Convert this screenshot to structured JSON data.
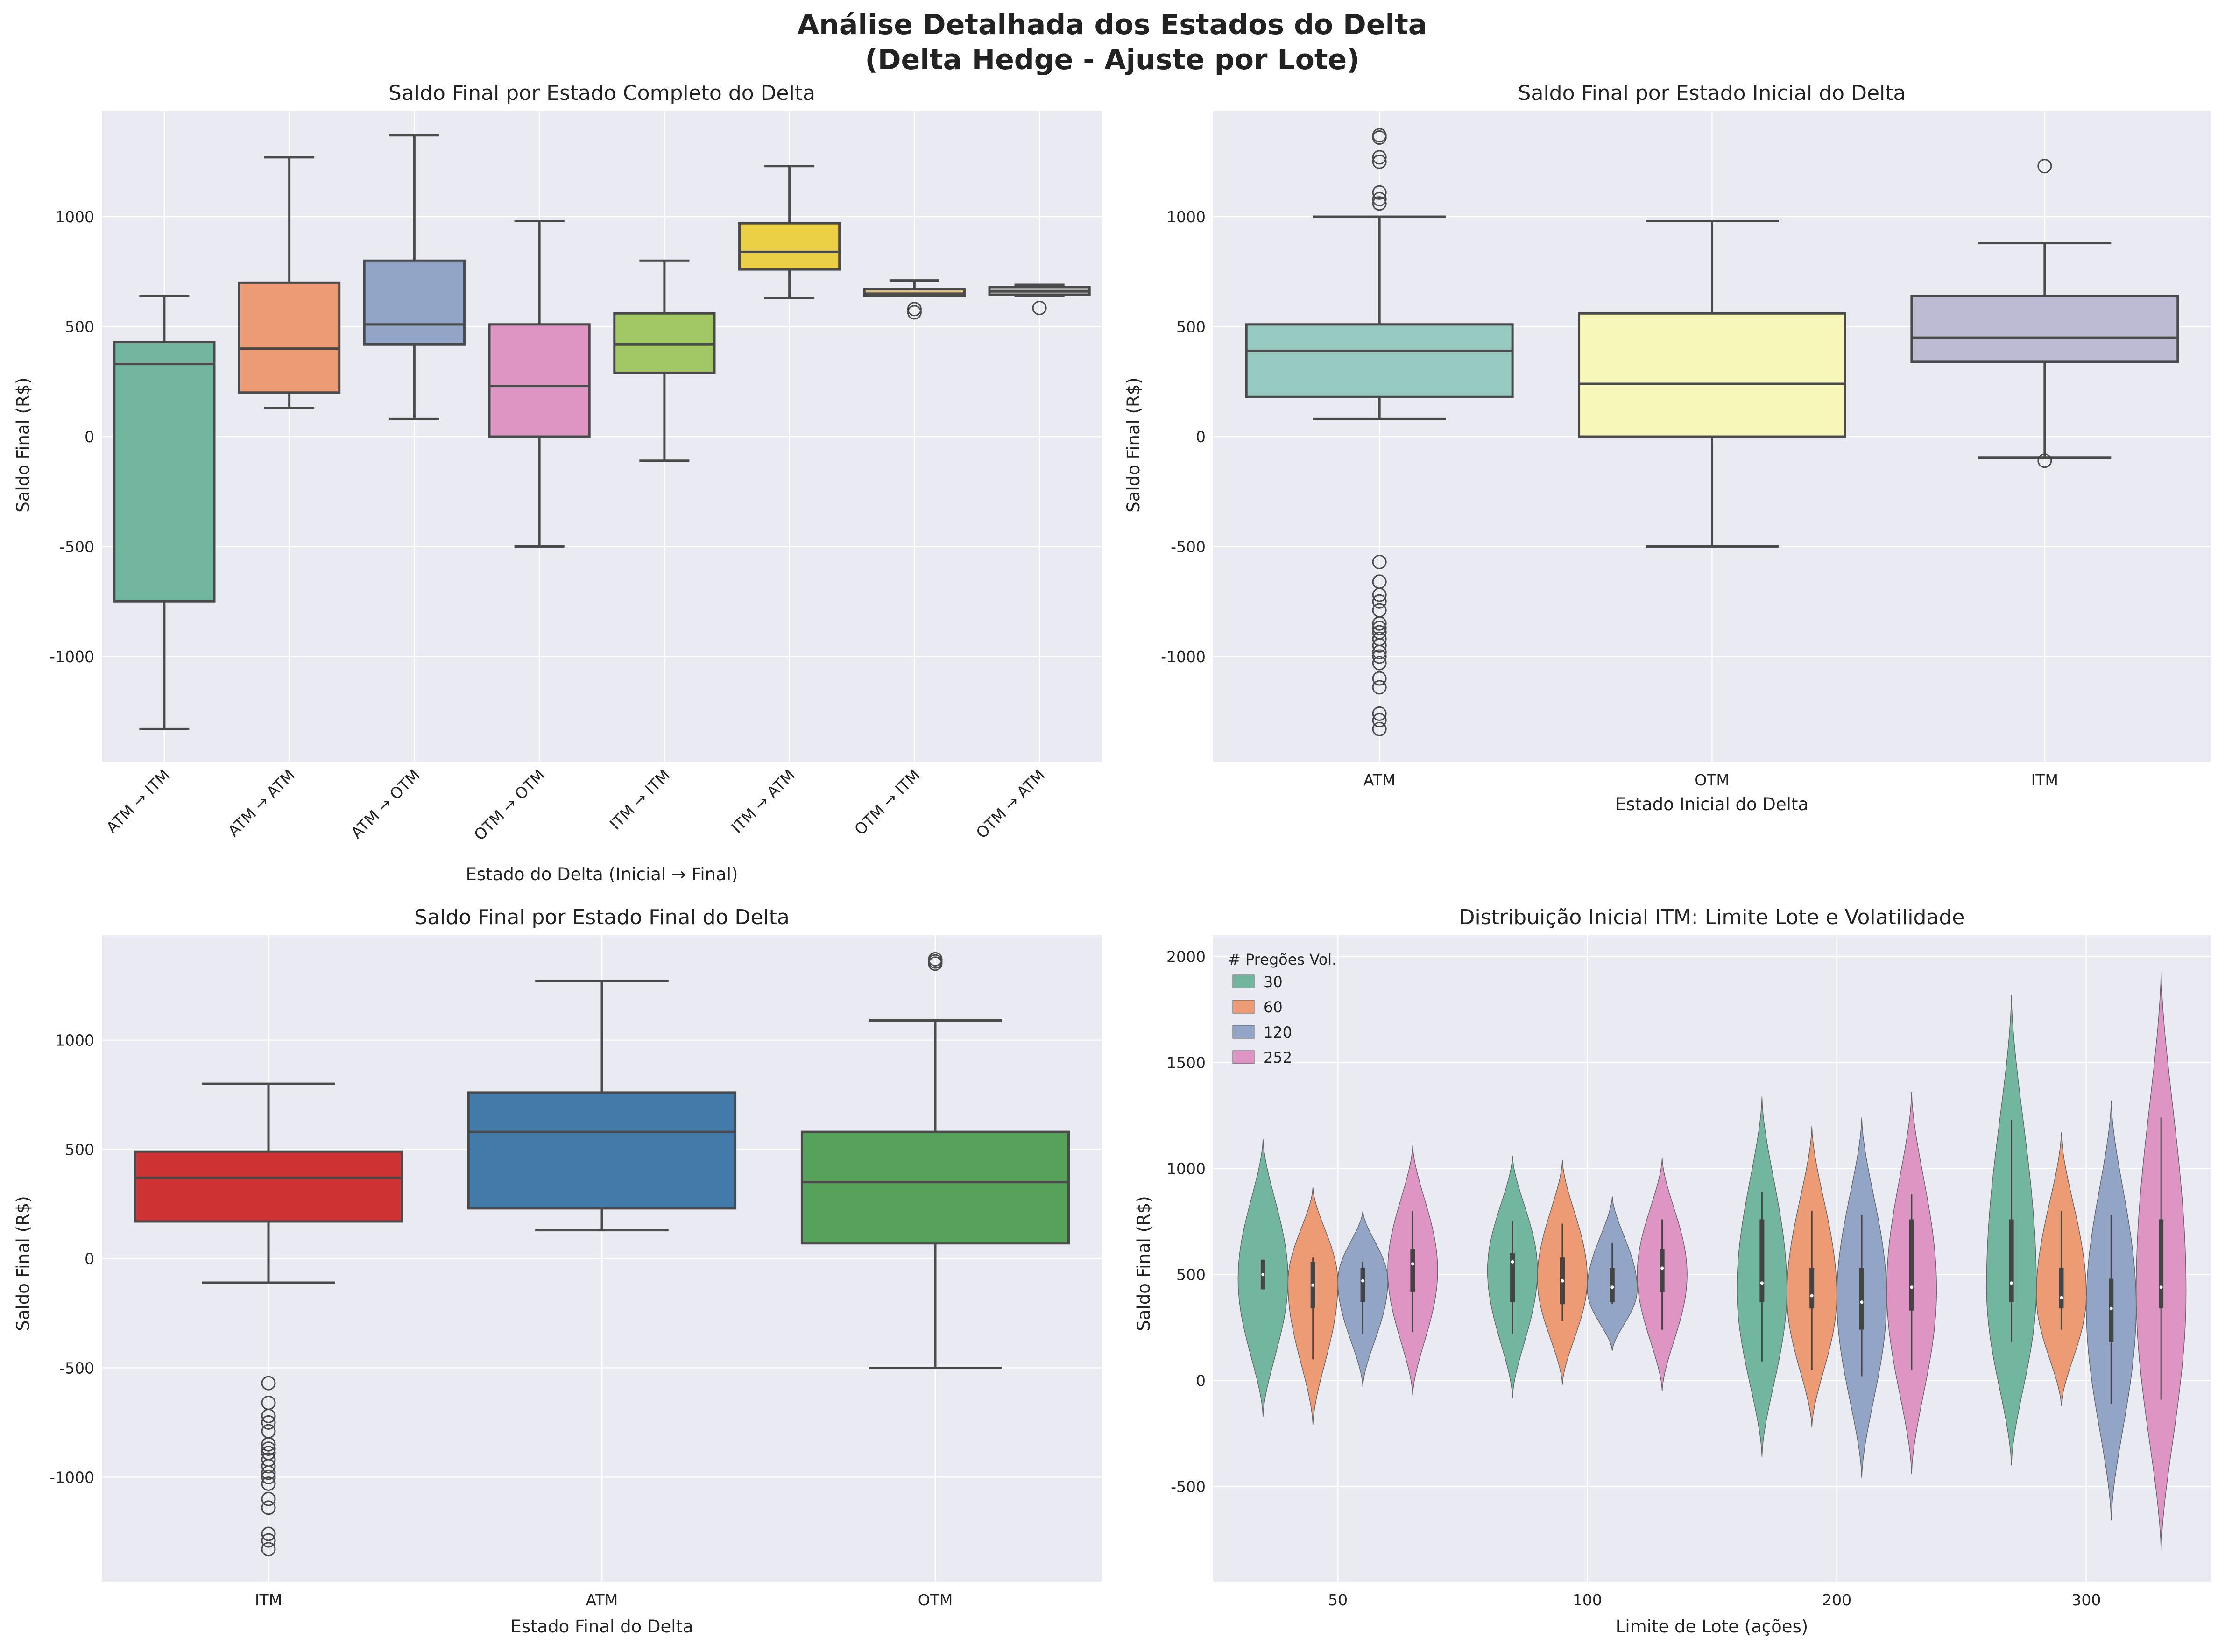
{
  "figure": {
    "title_line1": "Análise Detalhada dos Estados do Delta",
    "title_line2": "(Delta Hedge - Ajuste por Lote)"
  },
  "chart_data": [
    {
      "type": "box",
      "title": "Saldo Final por Estado Completo do Delta",
      "xlabel": "Estado do Delta (Inicial → Final)",
      "ylabel": "Saldo Final (R$)",
      "ylim": [
        -1480,
        1480
      ],
      "yticks": [
        -1000,
        -500,
        0,
        500,
        1000
      ],
      "categories": [
        "ATM → ITM",
        "ATM → ATM",
        "ATM → OTM",
        "OTM → OTM",
        "ITM → ITM",
        "ITM → ATM",
        "OTM → ITM",
        "OTM → ATM"
      ],
      "colors": [
        "#72b6a0",
        "#ed9b74",
        "#93a5c7",
        "#de95c4",
        "#a2c866",
        "#ebd046",
        "#e0c286",
        "#b3b3b3"
      ],
      "boxes": [
        {
          "whislo": -1330,
          "q1": -750,
          "med": 330,
          "q3": 430,
          "whishi": 640,
          "fliers": []
        },
        {
          "whislo": 130,
          "q1": 200,
          "med": 400,
          "q3": 700,
          "whishi": 1270,
          "fliers": []
        },
        {
          "whislo": 80,
          "q1": 420,
          "med": 510,
          "q3": 800,
          "whishi": 1370,
          "fliers": []
        },
        {
          "whislo": -500,
          "q1": 0,
          "med": 230,
          "q3": 510,
          "whishi": 980,
          "fliers": []
        },
        {
          "whislo": -110,
          "q1": 290,
          "med": 420,
          "q3": 560,
          "whishi": 800,
          "fliers": []
        },
        {
          "whislo": 630,
          "q1": 760,
          "med": 840,
          "q3": 970,
          "whishi": 1230,
          "fliers": []
        },
        {
          "whislo": 640,
          "q1": 640,
          "med": 650,
          "q3": 670,
          "whishi": 710,
          "fliers": [
            580,
            565
          ]
        },
        {
          "whislo": 640,
          "q1": 645,
          "med": 660,
          "q3": 680,
          "whishi": 690,
          "fliers": [
            585
          ]
        }
      ]
    },
    {
      "type": "box",
      "title": "Saldo Final por Estado Inicial do Delta",
      "xlabel": "Estado Inicial do Delta",
      "ylabel": "Saldo Final (R$)",
      "ylim": [
        -1480,
        1480
      ],
      "yticks": [
        -1000,
        -500,
        0,
        500,
        1000
      ],
      "categories": [
        "ATM",
        "OTM",
        "ITM"
      ],
      "colors": [
        "#97cbc1",
        "#f7f7b9",
        "#bdbad3"
      ],
      "boxes": [
        {
          "whislo": 80,
          "q1": 180,
          "med": 390,
          "q3": 510,
          "whishi": 1000,
          "fliers": [
            1370,
            1360,
            1270,
            1250,
            1110,
            1080,
            1060,
            -570,
            -660,
            -720,
            -750,
            -790,
            -850,
            -870,
            -890,
            -920,
            -950,
            -980,
            -1000,
            -1030,
            -1100,
            -1140,
            -1260,
            -1290,
            -1330
          ]
        },
        {
          "whislo": -500,
          "q1": 0,
          "med": 240,
          "q3": 560,
          "whishi": 980,
          "fliers": []
        },
        {
          "whislo": -95,
          "q1": 340,
          "med": 450,
          "q3": 640,
          "whishi": 880,
          "fliers": [
            1230,
            -110
          ]
        }
      ]
    },
    {
      "type": "box",
      "title": "Saldo Final por Estado Final do Delta",
      "xlabel": "Estado Final do Delta",
      "ylabel": "Saldo Final (R$)",
      "ylim": [
        -1480,
        1480
      ],
      "yticks": [
        -1000,
        -500,
        0,
        500,
        1000
      ],
      "categories": [
        "ITM",
        "ATM",
        "OTM"
      ],
      "colors": [
        "#cf3232",
        "#427baa",
        "#57a25a"
      ],
      "boxes": [
        {
          "whislo": -110,
          "q1": 170,
          "med": 370,
          "q3": 490,
          "whishi": 800,
          "fliers": [
            -570,
            -660,
            -720,
            -750,
            -790,
            -850,
            -870,
            -890,
            -920,
            -950,
            -980,
            -1000,
            -1030,
            -1100,
            -1140,
            -1260,
            -1290,
            -1330
          ]
        },
        {
          "whislo": 130,
          "q1": 230,
          "med": 580,
          "q3": 760,
          "whishi": 1270,
          "fliers": []
        },
        {
          "whislo": -500,
          "q1": 70,
          "med": 350,
          "q3": 580,
          "whishi": 1090,
          "fliers": [
            1370,
            1360,
            1350
          ]
        }
      ]
    },
    {
      "type": "violin",
      "title": "Distribuição Inicial ITM: Limite Lote e Volatilidade",
      "xlabel": "Limite de Lote (ações)",
      "ylabel": "Saldo Final (R$)",
      "ylim": [
        -950,
        2100
      ],
      "yticks": [
        -500,
        0,
        500,
        1000,
        1500,
        2000
      ],
      "categories": [
        "50",
        "100",
        "200",
        "300"
      ],
      "legend_title": "# Pregões Vol.",
      "legend_location": "upper-left",
      "series": [
        {
          "name": "30",
          "color": "#72b6a0"
        },
        {
          "name": "60",
          "color": "#ed9b74"
        },
        {
          "name": "120",
          "color": "#93a5c7"
        },
        {
          "name": "252",
          "color": "#de95c4"
        }
      ],
      "violins": [
        [
          {
            "min": -170,
            "max": 1140,
            "q1": 430,
            "med": 500,
            "q3": 570,
            "wlo": 430,
            "whi": 570,
            "peak": 480
          },
          {
            "min": -210,
            "max": 910,
            "q1": 340,
            "med": 450,
            "q3": 560,
            "wlo": 100,
            "whi": 580,
            "peak": 460
          },
          {
            "min": -30,
            "max": 800,
            "q1": 370,
            "med": 470,
            "q3": 530,
            "wlo": 220,
            "whi": 560,
            "peak": 470
          },
          {
            "min": -70,
            "max": 1110,
            "q1": 420,
            "med": 550,
            "q3": 620,
            "wlo": 230,
            "whi": 800,
            "peak": 520
          }
        ],
        [
          {
            "min": -80,
            "max": 1060,
            "q1": 370,
            "med": 560,
            "q3": 600,
            "wlo": 220,
            "whi": 750,
            "peak": 520
          },
          {
            "min": -20,
            "max": 1040,
            "q1": 360,
            "med": 470,
            "q3": 580,
            "wlo": 280,
            "whi": 740,
            "peak": 480
          },
          {
            "min": 140,
            "max": 870,
            "q1": 370,
            "med": 440,
            "q3": 530,
            "wlo": 360,
            "whi": 650,
            "peak": 430
          },
          {
            "min": -50,
            "max": 1050,
            "q1": 420,
            "med": 530,
            "q3": 620,
            "wlo": 240,
            "whi": 760,
            "peak": 500
          }
        ],
        [
          {
            "min": -360,
            "max": 1340,
            "q1": 370,
            "med": 460,
            "q3": 760,
            "wlo": 90,
            "whi": 890,
            "peak": 430
          },
          {
            "min": -220,
            "max": 1200,
            "q1": 340,
            "med": 400,
            "q3": 530,
            "wlo": 50,
            "whi": 800,
            "peak": 400
          },
          {
            "min": -460,
            "max": 1240,
            "q1": 240,
            "med": 370,
            "q3": 530,
            "wlo": 20,
            "whi": 780,
            "peak": 390
          },
          {
            "min": -440,
            "max": 1360,
            "q1": 330,
            "med": 440,
            "q3": 760,
            "wlo": 50,
            "whi": 880,
            "peak": 430
          }
        ],
        [
          {
            "min": -400,
            "max": 1820,
            "q1": 370,
            "med": 460,
            "q3": 760,
            "wlo": 180,
            "whi": 1230,
            "peak": 440
          },
          {
            "min": -120,
            "max": 1170,
            "q1": 340,
            "med": 390,
            "q3": 530,
            "wlo": 240,
            "whi": 800,
            "peak": 400
          },
          {
            "min": -660,
            "max": 1320,
            "q1": 180,
            "med": 340,
            "q3": 480,
            "wlo": -110,
            "whi": 780,
            "peak": 350
          },
          {
            "min": -810,
            "max": 1940,
            "q1": 340,
            "med": 440,
            "q3": 760,
            "wlo": -90,
            "whi": 1240,
            "peak": 420
          }
        ]
      ]
    }
  ]
}
